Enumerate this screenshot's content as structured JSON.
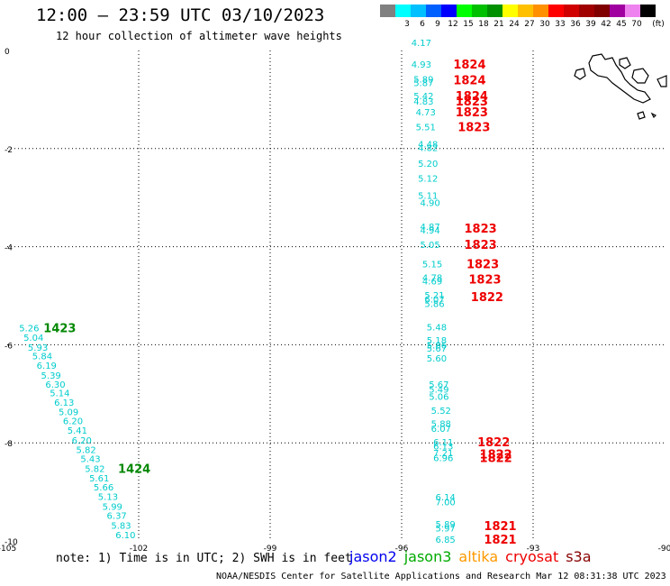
{
  "title": "12:00 – 23:59 UTC 03/10/2023",
  "subtitle": "12 hour collection of altimeter wave heights",
  "color_scale": {
    "unit": "(ft)",
    "items": [
      {
        "label": "",
        "color": "#808080"
      },
      {
        "label": "3",
        "color": "#00ffff"
      },
      {
        "label": "6",
        "color": "#00c0ff"
      },
      {
        "label": "9",
        "color": "#0060ff"
      },
      {
        "label": "12",
        "color": "#0000ff"
      },
      {
        "label": "15",
        "color": "#00ff00"
      },
      {
        "label": "18",
        "color": "#00c000"
      },
      {
        "label": "21",
        "color": "#009000"
      },
      {
        "label": "24",
        "color": "#ffff00"
      },
      {
        "label": "27",
        "color": "#ffc000"
      },
      {
        "label": "30",
        "color": "#ff9000"
      },
      {
        "label": "33",
        "color": "#ff0000"
      },
      {
        "label": "36",
        "color": "#d00000"
      },
      {
        "label": "39",
        "color": "#a00000"
      },
      {
        "label": "42",
        "color": "#800000"
      },
      {
        "label": "45",
        "color": "#a000a0"
      },
      {
        "label": "70",
        "color": "#ee82ee"
      },
      {
        "label": "",
        "color": "#000000"
      }
    ]
  },
  "axes": {
    "lon_ticks": [
      "-105",
      "-102",
      "-99",
      "-96",
      "-93",
      "-90"
    ],
    "lat_ticks": [
      "0",
      "-2",
      "-4",
      "-6",
      "-8",
      "-10"
    ],
    "lon_range": [
      -105,
      -90
    ],
    "lat_range": [
      -10,
      0
    ],
    "grid": true
  },
  "tracks": [
    {
      "satellite": "cryosat",
      "color": "#00cccc",
      "observations": [
        {
          "lon": -95.55,
          "lat": 0.17,
          "value": "4.17"
        },
        {
          "lon": -95.55,
          "lat": -0.28,
          "value": "4.93"
        },
        {
          "lon": -95.5,
          "lat": -0.58,
          "value": "5.89"
        },
        {
          "lon": -95.5,
          "lat": -0.65,
          "value": "5.87"
        },
        {
          "lon": -95.5,
          "lat": -0.92,
          "value": "5.42"
        },
        {
          "lon": -95.5,
          "lat": -1.03,
          "value": "4.83"
        },
        {
          "lon": -95.45,
          "lat": -1.25,
          "value": "4.73"
        },
        {
          "lon": -95.45,
          "lat": -1.55,
          "value": "5.51"
        },
        {
          "lon": -95.4,
          "lat": -1.9,
          "value": "4.48"
        },
        {
          "lon": -95.4,
          "lat": -1.98,
          "value": "4.82"
        },
        {
          "lon": -95.4,
          "lat": -2.3,
          "value": "5.20"
        },
        {
          "lon": -95.4,
          "lat": -2.6,
          "value": "5.12"
        },
        {
          "lon": -95.4,
          "lat": -2.95,
          "value": "5.11"
        },
        {
          "lon": -95.35,
          "lat": -3.1,
          "value": "4.90"
        },
        {
          "lon": -95.35,
          "lat": -3.58,
          "value": "4.87"
        },
        {
          "lon": -95.35,
          "lat": -3.66,
          "value": "4.94"
        },
        {
          "lon": -95.35,
          "lat": -3.95,
          "value": "5.05"
        },
        {
          "lon": -95.3,
          "lat": -4.35,
          "value": "5.15"
        },
        {
          "lon": -95.3,
          "lat": -4.62,
          "value": "4.78"
        },
        {
          "lon": -95.3,
          "lat": -4.7,
          "value": "4.69"
        },
        {
          "lon": -95.25,
          "lat": -4.98,
          "value": "5.21"
        },
        {
          "lon": -95.25,
          "lat": -5.06,
          "value": "6.07"
        },
        {
          "lon": -95.25,
          "lat": -5.16,
          "value": "5.86"
        },
        {
          "lon": -95.2,
          "lat": -5.63,
          "value": "5.48"
        },
        {
          "lon": -95.2,
          "lat": -5.9,
          "value": "5.18"
        },
        {
          "lon": -95.2,
          "lat": -6.0,
          "value": "5.86"
        },
        {
          "lon": -95.2,
          "lat": -6.07,
          "value": "5.67"
        },
        {
          "lon": -95.2,
          "lat": -6.27,
          "value": "5.60"
        },
        {
          "lon": -95.15,
          "lat": -6.8,
          "value": "5.67"
        },
        {
          "lon": -95.15,
          "lat": -6.9,
          "value": "5.49"
        },
        {
          "lon": -95.15,
          "lat": -7.05,
          "value": "5.06"
        },
        {
          "lon": -95.1,
          "lat": -7.33,
          "value": "5.52"
        },
        {
          "lon": -95.1,
          "lat": -7.6,
          "value": "5.88"
        },
        {
          "lon": -95.1,
          "lat": -7.7,
          "value": "6.07"
        },
        {
          "lon": -95.05,
          "lat": -7.98,
          "value": "6.11"
        },
        {
          "lon": -95.05,
          "lat": -8.06,
          "value": "6.13"
        },
        {
          "lon": -95.05,
          "lat": -8.2,
          "value": "7.21"
        },
        {
          "lon": -95.05,
          "lat": -8.3,
          "value": "6.96"
        },
        {
          "lon": -95.0,
          "lat": -9.1,
          "value": "6.14"
        },
        {
          "lon": -95.0,
          "lat": -9.2,
          "value": "7.00"
        },
        {
          "lon": -95.0,
          "lat": -9.65,
          "value": "5.89"
        },
        {
          "lon": -95.0,
          "lat": -9.73,
          "value": "5.97"
        },
        {
          "lon": -95.0,
          "lat": -9.96,
          "value": "6.85"
        }
      ]
    },
    {
      "satellite": "jason3",
      "color": "#00cccc",
      "observations": [
        {
          "lon": -104.5,
          "lat": -5.65,
          "value": "5.26"
        },
        {
          "lon": -104.4,
          "lat": -5.85,
          "value": "5.04"
        },
        {
          "lon": -104.3,
          "lat": -6.05,
          "value": "5.93"
        },
        {
          "lon": -104.2,
          "lat": -6.22,
          "value": "5.84"
        },
        {
          "lon": -104.1,
          "lat": -6.42,
          "value": "6.19"
        },
        {
          "lon": -104.0,
          "lat": -6.62,
          "value": "5.39"
        },
        {
          "lon": -103.9,
          "lat": -6.8,
          "value": "6.30"
        },
        {
          "lon": -103.8,
          "lat": -6.98,
          "value": "5.14"
        },
        {
          "lon": -103.7,
          "lat": -7.17,
          "value": "6.13"
        },
        {
          "lon": -103.6,
          "lat": -7.36,
          "value": "5.09"
        },
        {
          "lon": -103.5,
          "lat": -7.55,
          "value": "6.20"
        },
        {
          "lon": -103.4,
          "lat": -7.74,
          "value": "5.41"
        },
        {
          "lon": -103.3,
          "lat": -7.94,
          "value": "6.20"
        },
        {
          "lon": -103.2,
          "lat": -8.13,
          "value": "5.82"
        },
        {
          "lon": -103.1,
          "lat": -8.32,
          "value": "5.43"
        },
        {
          "lon": -103.0,
          "lat": -8.52,
          "value": "5.82"
        },
        {
          "lon": -102.9,
          "lat": -8.71,
          "value": "5.61"
        },
        {
          "lon": -102.8,
          "lat": -8.9,
          "value": "5.66"
        },
        {
          "lon": -102.7,
          "lat": -9.09,
          "value": "5.13"
        },
        {
          "lon": -102.6,
          "lat": -9.29,
          "value": "5.99"
        },
        {
          "lon": -102.5,
          "lat": -9.48,
          "value": "6.37"
        },
        {
          "lon": -102.4,
          "lat": -9.68,
          "value": "5.83"
        },
        {
          "lon": -102.3,
          "lat": -9.87,
          "value": "6.10"
        }
      ]
    }
  ],
  "time_labels": [
    {
      "text": "1824",
      "color": "#ee0000",
      "lon": -94.45,
      "lat": -0.28
    },
    {
      "text": "1824",
      "color": "#ee0000",
      "lon": -94.45,
      "lat": -0.6
    },
    {
      "text": "1824",
      "color": "#ee0000",
      "lon": -94.4,
      "lat": -0.92
    },
    {
      "text": "1823",
      "color": "#ee0000",
      "lon": -94.4,
      "lat": -1.03
    },
    {
      "text": "1823",
      "color": "#ee0000",
      "lon": -94.4,
      "lat": -1.25
    },
    {
      "text": "1823",
      "color": "#ee0000",
      "lon": -94.35,
      "lat": -1.55
    },
    {
      "text": "1823",
      "color": "#ee0000",
      "lon": -94.2,
      "lat": -3.62
    },
    {
      "text": "1823",
      "color": "#ee0000",
      "lon": -94.2,
      "lat": -3.95
    },
    {
      "text": "1823",
      "color": "#ee0000",
      "lon": -94.15,
      "lat": -4.35
    },
    {
      "text": "1823",
      "color": "#ee0000",
      "lon": -94.1,
      "lat": -4.66
    },
    {
      "text": "1822",
      "color": "#ee0000",
      "lon": -94.05,
      "lat": -5.02
    },
    {
      "text": "1822",
      "color": "#ee0000",
      "lon": -93.9,
      "lat": -7.98
    },
    {
      "text": "1822",
      "color": "#ee0000",
      "lon": -93.85,
      "lat": -8.23
    },
    {
      "text": "1822",
      "color": "#ee0000",
      "lon": -93.85,
      "lat": -8.3
    },
    {
      "text": "1821",
      "color": "#ee0000",
      "lon": -93.75,
      "lat": -9.69
    },
    {
      "text": "1821",
      "color": "#ee0000",
      "lon": -93.75,
      "lat": -9.96
    },
    {
      "text": "1423",
      "color": "#008800",
      "lon": -103.8,
      "lat": -5.65
    },
    {
      "text": "1424",
      "color": "#008800",
      "lon": -102.1,
      "lat": -8.52
    }
  ],
  "note": "note: 1) Time is in UTC; 2) SWH is in feet",
  "legend": [
    {
      "name": "jason2",
      "color": "#0000ee"
    },
    {
      "name": "jason3",
      "color": "#00aa00"
    },
    {
      "name": "altika",
      "color": "#ff9900"
    },
    {
      "name": "cryosat",
      "color": "#ee0000"
    },
    {
      "name": "s3a",
      "color": "#880000"
    }
  ],
  "credit": "NOAA/NESDIS Center for Satellite Applications and Research    Mar 12 08:31:38 UTC 2023"
}
